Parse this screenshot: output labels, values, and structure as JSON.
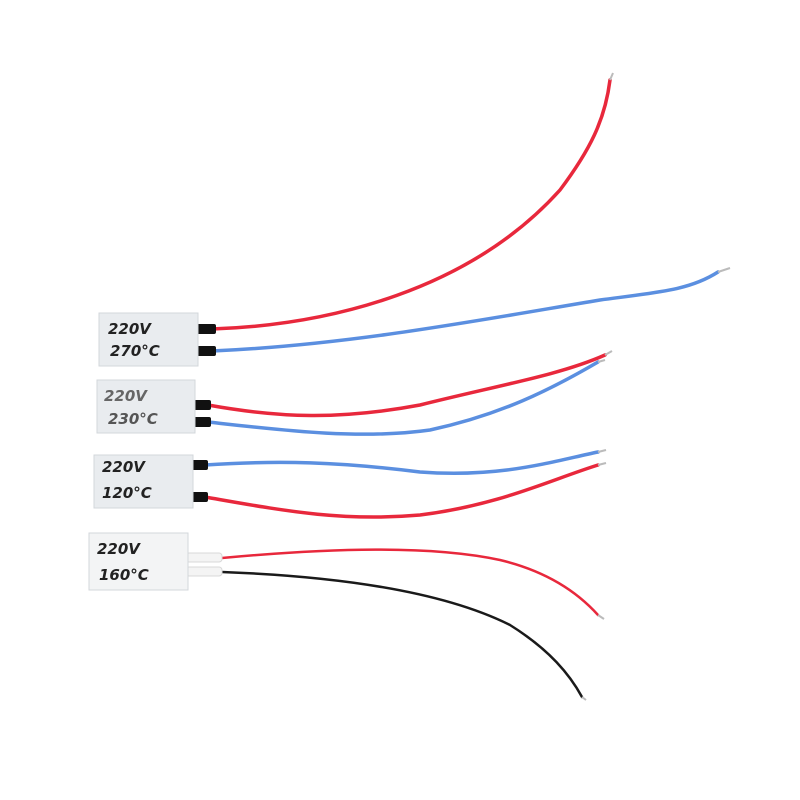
{
  "heaters": [
    {
      "voltage": "220V",
      "temperature": "270°C",
      "wires": [
        "red",
        "blue"
      ]
    },
    {
      "voltage": "220V",
      "temperature": "230°C",
      "wires": [
        "red",
        "blue"
      ]
    },
    {
      "voltage": "220V",
      "temperature": "120°C",
      "wires": [
        "blue",
        "red"
      ]
    },
    {
      "voltage": "220V",
      "temperature": "160°C",
      "wires": [
        "red",
        "black"
      ]
    }
  ],
  "colors": {
    "red": "#e8283c",
    "blue": "#5b8fe0",
    "black": "#1a1a1a",
    "body": "#e9ecef"
  }
}
